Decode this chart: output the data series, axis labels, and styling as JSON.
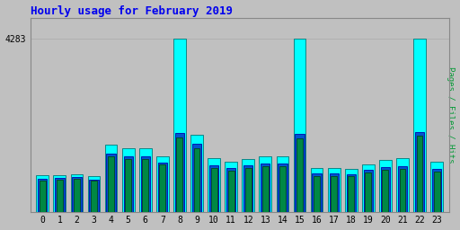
{
  "title": "Hourly usage for February 2019",
  "hours": [
    0,
    1,
    2,
    3,
    4,
    5,
    6,
    7,
    8,
    9,
    10,
    11,
    12,
    13,
    14,
    15,
    16,
    17,
    18,
    19,
    20,
    21,
    22,
    23
  ],
  "ylabel": "Pages / Files / Hits",
  "pages": [
    780,
    800,
    810,
    760,
    1360,
    1310,
    1300,
    1170,
    1830,
    1580,
    1080,
    1020,
    1080,
    1120,
    1130,
    1820,
    890,
    890,
    870,
    970,
    1040,
    1060,
    1870,
    1000
  ],
  "files": [
    820,
    840,
    850,
    800,
    1430,
    1370,
    1360,
    1220,
    1950,
    1670,
    1150,
    1080,
    1150,
    1200,
    1200,
    1930,
    940,
    940,
    920,
    1030,
    1100,
    1130,
    1960,
    1060
  ],
  "hits": [
    900,
    910,
    920,
    880,
    1650,
    1560,
    1560,
    1380,
    4283,
    1900,
    1320,
    1230,
    1310,
    1380,
    1380,
    4283,
    1080,
    1080,
    1050,
    1180,
    1270,
    1320,
    4283,
    1240
  ],
  "color_pages": "#008844",
  "color_files": "#0055cc",
  "color_hits": "#00ffff",
  "bg_color": "#c0c0c0",
  "plot_bg": "#c0c0c0",
  "title_color": "#0000ee",
  "ylabel_color": "#009933",
  "ytick_val": 4283,
  "ytick_label": "4283",
  "ylim_max": 4800
}
